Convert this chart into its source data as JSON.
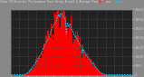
{
  "title": "Solar PV/Inverter Performance East Array Actual & Average Power Output",
  "bg_color": "#888888",
  "plot_bg": "#222222",
  "bar_color": "#ff0000",
  "avg_line_color": "#00ccff",
  "grid_color": "#555555",
  "ylim": [
    0,
    3500
  ],
  "ytick_labels": [
    "0",
    "500",
    "1000",
    "1500",
    "2000",
    "2500",
    "3000",
    "3500"
  ],
  "yticks": [
    0,
    500,
    1000,
    1500,
    2000,
    2500,
    3000,
    3500
  ],
  "bar_values": [
    0,
    0,
    0,
    0,
    0,
    0,
    0,
    0,
    0,
    0,
    0,
    0,
    0,
    0,
    0,
    10,
    20,
    30,
    50,
    80,
    120,
    160,
    210,
    260,
    310,
    370,
    430,
    490,
    560,
    640,
    720,
    800,
    870,
    940,
    1010,
    1080,
    1150,
    1240,
    1350,
    1480,
    1600,
    1700,
    1780,
    1850,
    1900,
    1980,
    2100,
    2250,
    2400,
    2520,
    2600,
    2680,
    2750,
    2820,
    2900,
    3050,
    3200,
    3280,
    3100,
    3320,
    3300,
    3280,
    3200,
    3100,
    3050,
    2950,
    2200,
    2800,
    2700,
    2600,
    2750,
    2650,
    2500,
    2400,
    2300,
    2200,
    2100,
    2050,
    2000,
    1950,
    1850,
    1750,
    1650,
    1600,
    1550,
    1200,
    1400,
    1300,
    1250,
    1100,
    1050,
    1000,
    950,
    880,
    820,
    750,
    700,
    640,
    580,
    520,
    460,
    400,
    340,
    290,
    240,
    180,
    140,
    110,
    80,
    55,
    35,
    20,
    10,
    5,
    2,
    0,
    0,
    0,
    0,
    0,
    0,
    0,
    0,
    0,
    0,
    0,
    0,
    0,
    0,
    0,
    0,
    0,
    0,
    0,
    0,
    0,
    0,
    0,
    0,
    0,
    0,
    0,
    0,
    0,
    0
  ],
  "avg_values": [
    0,
    0,
    0,
    0,
    0,
    0,
    0,
    0,
    0,
    0,
    0,
    0,
    0,
    0,
    0,
    8,
    16,
    28,
    45,
    70,
    100,
    140,
    190,
    240,
    290,
    350,
    410,
    470,
    540,
    615,
    695,
    770,
    845,
    915,
    985,
    1060,
    1130,
    1220,
    1330,
    1460,
    1570,
    1670,
    1755,
    1825,
    1878,
    1960,
    2080,
    2230,
    2375,
    2495,
    2575,
    2660,
    2730,
    2800,
    2880,
    3020,
    3160,
    3250,
    3080,
    3290,
    3270,
    3255,
    3175,
    3075,
    3025,
    2925,
    2175,
    2770,
    2670,
    2575,
    2725,
    2625,
    2475,
    2375,
    2275,
    2175,
    2075,
    2025,
    1975,
    1925,
    1825,
    1725,
    1625,
    1580,
    1530,
    1180,
    1380,
    1280,
    1230,
    1080,
    1030,
    985,
    930,
    865,
    805,
    735,
    685,
    625,
    565,
    510,
    450,
    390,
    333,
    283,
    235,
    175,
    137,
    107,
    77,
    53,
    33,
    18,
    9,
    4,
    2,
    0,
    0,
    0,
    0,
    0,
    0,
    0,
    0,
    0,
    0,
    0,
    0,
    0,
    0,
    0,
    0,
    0,
    0,
    0,
    0,
    0,
    0,
    0,
    0,
    0,
    0,
    0,
    0,
    0,
    0
  ],
  "n_bars": 145
}
